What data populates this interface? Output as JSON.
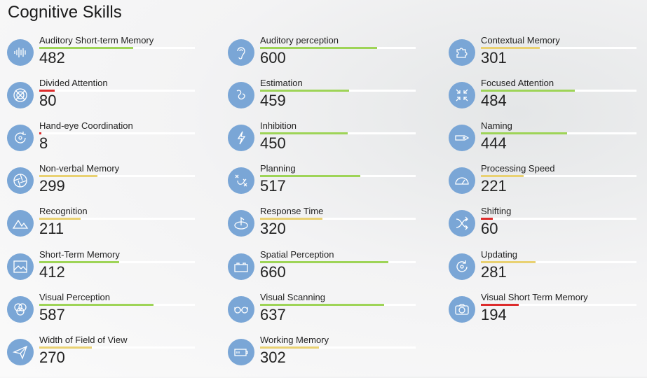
{
  "title": "Cognitive Skills",
  "scale_max": 800,
  "colors": {
    "green": "#9ed457",
    "yellow": "#e9d172",
    "red": "#dd2c2c",
    "icon_bg": "#7aa6d6"
  },
  "skills": [
    {
      "label": "Auditory Short-term Memory",
      "value": 482,
      "status": "green",
      "icon": "soundwave-icon"
    },
    {
      "label": "Divided Attention",
      "value": 80,
      "status": "red",
      "icon": "crosshair-icon"
    },
    {
      "label": "Hand-eye Coordination",
      "value": 8,
      "status": "red",
      "icon": "rotate-icon"
    },
    {
      "label": "Non-verbal Memory",
      "value": 299,
      "status": "yellow",
      "icon": "aperture-icon"
    },
    {
      "label": "Recognition",
      "value": 211,
      "status": "yellow",
      "icon": "mountains-icon"
    },
    {
      "label": "Short-Term Memory",
      "value": 412,
      "status": "green",
      "icon": "image-icon"
    },
    {
      "label": "Visual Perception",
      "value": 587,
      "status": "green",
      "icon": "circles-icon"
    },
    {
      "label": "Width of Field of View",
      "value": 270,
      "status": "yellow",
      "icon": "paper-plane-icon"
    },
    {
      "label": "Auditory perception",
      "value": 600,
      "status": "green",
      "icon": "ear-icon"
    },
    {
      "label": "Estimation",
      "value": 459,
      "status": "green",
      "icon": "squiggle-icon"
    },
    {
      "label": "Inhibition",
      "value": 450,
      "status": "green",
      "icon": "lightning-icon"
    },
    {
      "label": "Planning",
      "value": 517,
      "status": "green",
      "icon": "tactics-icon"
    },
    {
      "label": "Response Time",
      "value": 320,
      "status": "yellow",
      "icon": "timer-icon"
    },
    {
      "label": "Spatial Perception",
      "value": 660,
      "status": "green",
      "icon": "block-icon"
    },
    {
      "label": "Visual Scanning",
      "value": 637,
      "status": "green",
      "icon": "glasses-icon"
    },
    {
      "label": "Working Memory",
      "value": 302,
      "status": "yellow",
      "icon": "battery-icon"
    },
    {
      "label": "Contextual Memory",
      "value": 301,
      "status": "yellow",
      "icon": "puzzle-icon"
    },
    {
      "label": "Focused Attention",
      "value": 484,
      "status": "green",
      "icon": "focus-icon"
    },
    {
      "label": "Naming",
      "value": 444,
      "status": "green",
      "icon": "tag-icon"
    },
    {
      "label": "Processing Speed",
      "value": 221,
      "status": "yellow",
      "icon": "speedometer-icon"
    },
    {
      "label": "Shifting",
      "value": 60,
      "status": "red",
      "icon": "shuffle-icon"
    },
    {
      "label": "Updating",
      "value": 281,
      "status": "yellow",
      "icon": "refresh-icon"
    },
    {
      "label": "Visual Short Term Memory",
      "value": 194,
      "status": "red",
      "icon": "camera-icon"
    }
  ]
}
